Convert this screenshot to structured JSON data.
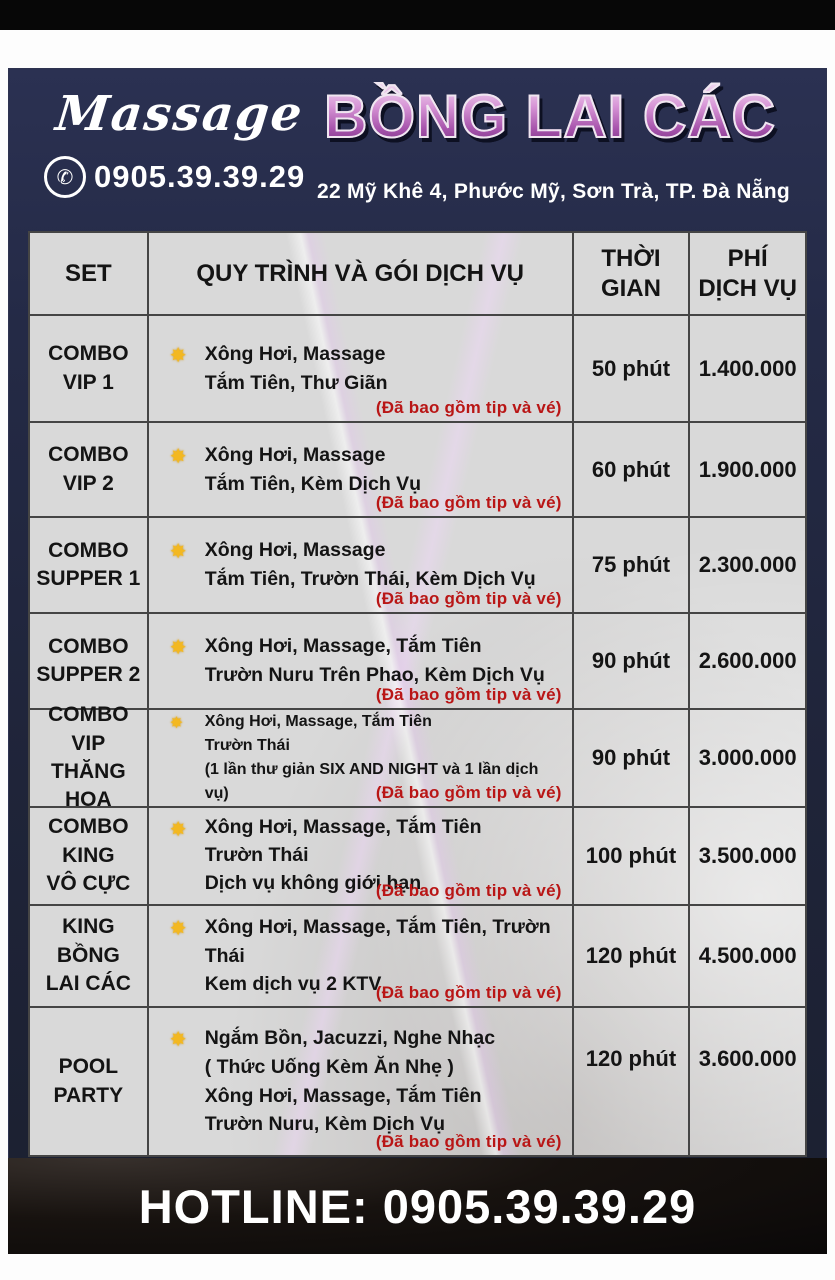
{
  "brand": {
    "script_label": "Massage",
    "phone": "0905.39.39.29",
    "title": "BỒNG LAI CÁC",
    "address": "22 Mỹ Khê 4, Phước Mỹ, Sơn Trà, TP. Đà Nẵng"
  },
  "glyphs": {
    "phone_icon": "✆",
    "star_icon": "✸"
  },
  "colors": {
    "poster_navy": "#222842",
    "title_purple": "#a653ab",
    "note_red": "#b91616",
    "star_gold": "#f3b821",
    "cell_gray": "#d9d9d9"
  },
  "table": {
    "headers": {
      "set": "SET",
      "service": "QUY TRÌNH VÀ GÓI DỊCH VỤ",
      "time": "THỜI\nGIAN",
      "price": "PHÍ\nDỊCH VỤ"
    },
    "rows": [
      {
        "set": "COMBO\nVIP 1",
        "lines": "Xông Hơi, Massage\nTắm Tiên, Thư Giãn",
        "note": "(Đã bao gồm tip và vé)",
        "time": "50 phút",
        "price": "1.400.000"
      },
      {
        "set": "COMBO\nVIP 2",
        "lines": "Xông Hơi, Massage\nTắm Tiên, Kèm Dịch Vụ",
        "note": "(Đã bao gồm tip và vé)",
        "time": "60 phút",
        "price": "1.900.000"
      },
      {
        "set": "COMBO\nSUPPER 1",
        "lines": "Xông Hơi, Massage\nTắm Tiên, Trườn Thái, Kèm Dịch Vụ",
        "note": "(Đã bao gồm tip và vé)",
        "time": "75 phút",
        "price": "2.300.000"
      },
      {
        "set": "COMBO\nSUPPER 2",
        "lines": "Xông Hơi, Massage, Tắm Tiên\nTrườn Nuru Trên Phao, Kèm Dịch Vụ",
        "note": "(Đã bao gồm tip và vé)",
        "time": "90 phút",
        "price": "2.600.000"
      },
      {
        "set": "COMBO\nVIP\nTHĂNG HOA",
        "lines": "Xông Hơi, Massage, Tắm Tiên\nTrườn Thái\n(1 lần thư giản SIX AND NIGHT và 1 lần dịch vụ)",
        "note": "(Đã bao gồm tip và vé)",
        "time": "90 phút",
        "price": "3.000.000"
      },
      {
        "set": "COMBO\nKING\nVÔ CỰC",
        "lines": "Xông Hơi, Massage, Tắm Tiên\nTrườn Thái\nDịch vụ không giới hạn",
        "note": "(Đã bao gồm tip và vé)",
        "time": "100 phút",
        "price": "3.500.000"
      },
      {
        "set": "KING\nBỒNG\nLAI CÁC",
        "lines": "Xông Hơi, Massage, Tắm Tiên, Trườn Thái\nKem dịch vụ 2 KTV",
        "note": "(Đã bao gồm tip và vé)",
        "time": "120 phút",
        "price": "4.500.000"
      },
      {
        "set": "POOL\nPARTY",
        "lines": "Ngắm Bồn, Jacuzzi, Nghe Nhạc\n( Thức Uống Kèm Ăn Nhẹ )\nXông Hơi, Massage, Tắm Tiên\nTrườn Nuru, Kèm Dịch Vụ",
        "note": "(Đã bao gồm tip và vé)",
        "time": "120 phút",
        "price": "3.600.000"
      }
    ]
  },
  "footer": {
    "hotline": "HOTLINE: 0905.39.39.29"
  }
}
